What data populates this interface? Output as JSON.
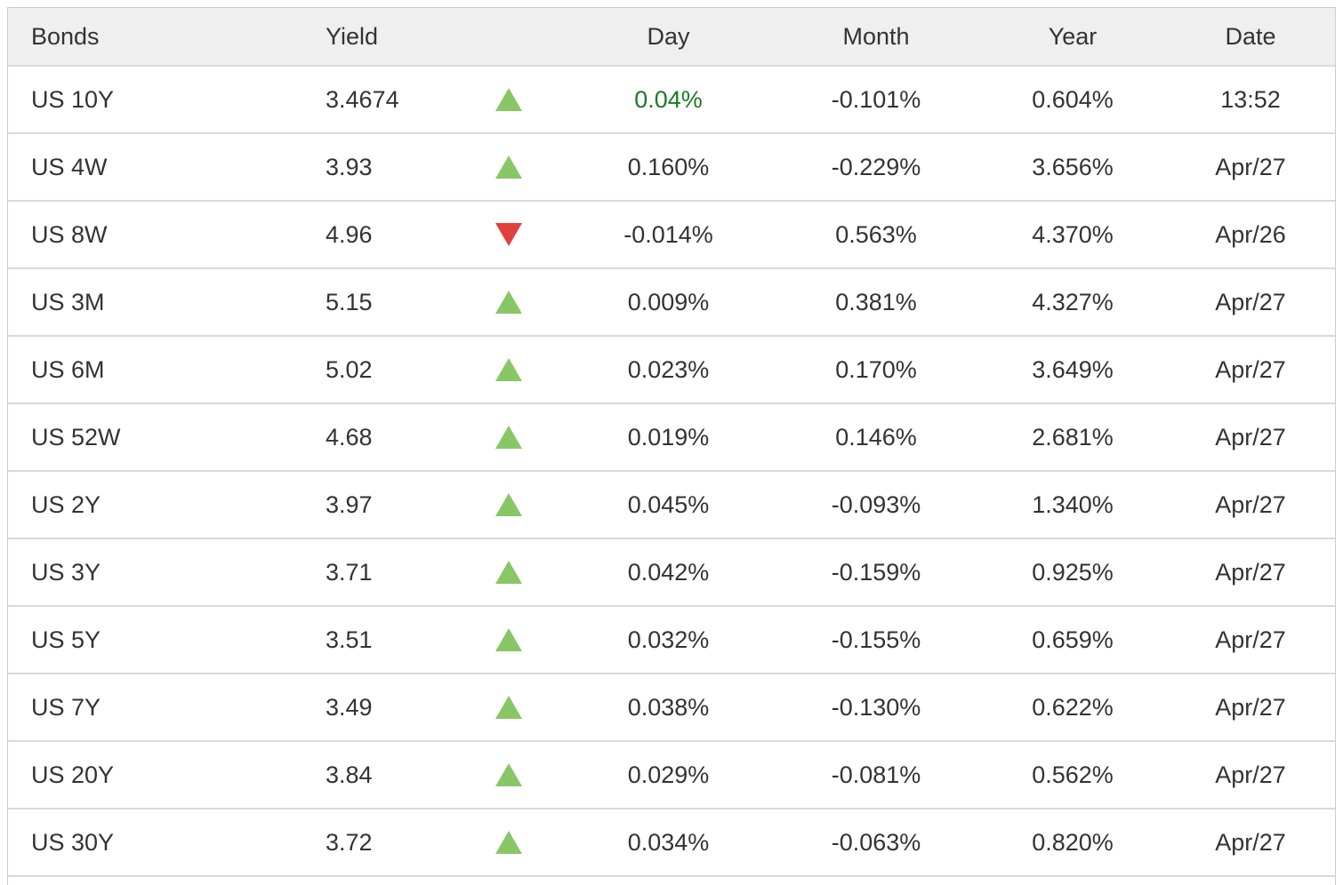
{
  "colors": {
    "text": "#333333",
    "header_bg": "#efefef",
    "row_border": "#d9d9d9",
    "up_triangle": "#89c766",
    "down_triangle": "#e2403d",
    "day_highlight_text": "#1a7a23"
  },
  "icons": {
    "up": "arrow-up-icon",
    "down": "arrow-down-icon"
  },
  "table": {
    "headers": {
      "bonds": "Bonds",
      "yield": "Yield",
      "arrow": "",
      "day": "Day",
      "month": "Month",
      "year": "Year",
      "date": "Date"
    },
    "rows": [
      {
        "bond": "US 10Y",
        "yield": "3.4674",
        "direction": "up",
        "day": "0.04%",
        "day_highlight": true,
        "month": "-0.101%",
        "year": "0.604%",
        "date": "13:52"
      },
      {
        "bond": "US 4W",
        "yield": "3.93",
        "direction": "up",
        "day": "0.160%",
        "day_highlight": false,
        "month": "-0.229%",
        "year": "3.656%",
        "date": "Apr/27"
      },
      {
        "bond": "US 8W",
        "yield": "4.96",
        "direction": "down",
        "day": "-0.014%",
        "day_highlight": false,
        "month": "0.563%",
        "year": "4.370%",
        "date": "Apr/26"
      },
      {
        "bond": "US 3M",
        "yield": "5.15",
        "direction": "up",
        "day": "0.009%",
        "day_highlight": false,
        "month": "0.381%",
        "year": "4.327%",
        "date": "Apr/27"
      },
      {
        "bond": "US 6M",
        "yield": "5.02",
        "direction": "up",
        "day": "0.023%",
        "day_highlight": false,
        "month": "0.170%",
        "year": "3.649%",
        "date": "Apr/27"
      },
      {
        "bond": "US 52W",
        "yield": "4.68",
        "direction": "up",
        "day": "0.019%",
        "day_highlight": false,
        "month": "0.146%",
        "year": "2.681%",
        "date": "Apr/27"
      },
      {
        "bond": "US 2Y",
        "yield": "3.97",
        "direction": "up",
        "day": "0.045%",
        "day_highlight": false,
        "month": "-0.093%",
        "year": "1.340%",
        "date": "Apr/27"
      },
      {
        "bond": "US 3Y",
        "yield": "3.71",
        "direction": "up",
        "day": "0.042%",
        "day_highlight": false,
        "month": "-0.159%",
        "year": "0.925%",
        "date": "Apr/27"
      },
      {
        "bond": "US 5Y",
        "yield": "3.51",
        "direction": "up",
        "day": "0.032%",
        "day_highlight": false,
        "month": "-0.155%",
        "year": "0.659%",
        "date": "Apr/27"
      },
      {
        "bond": "US 7Y",
        "yield": "3.49",
        "direction": "up",
        "day": "0.038%",
        "day_highlight": false,
        "month": "-0.130%",
        "year": "0.622%",
        "date": "Apr/27"
      },
      {
        "bond": "US 20Y",
        "yield": "3.84",
        "direction": "up",
        "day": "0.029%",
        "day_highlight": false,
        "month": "-0.081%",
        "year": "0.562%",
        "date": "Apr/27"
      },
      {
        "bond": "US 30Y",
        "yield": "3.72",
        "direction": "up",
        "day": "0.034%",
        "day_highlight": false,
        "month": "-0.063%",
        "year": "0.820%",
        "date": "Apr/27"
      }
    ]
  }
}
